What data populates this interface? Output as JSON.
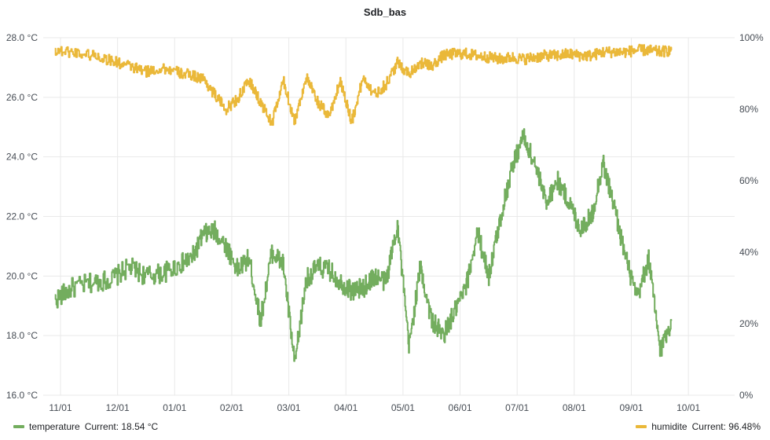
{
  "panel": {
    "title": "Sdb_bas"
  },
  "chart_data": {
    "type": "line",
    "title": "Sdb_bas",
    "x_ticks": [
      "11/01",
      "12/01",
      "01/01",
      "02/01",
      "03/01",
      "04/01",
      "05/01",
      "06/01",
      "07/01",
      "08/01",
      "09/01",
      "10/01"
    ],
    "y_left": {
      "ticks": [
        "16.0 °C",
        "18.0 °C",
        "20.0 °C",
        "22.0 °C",
        "24.0 °C",
        "26.0 °C",
        "28.0 °C"
      ],
      "range": [
        16,
        28
      ]
    },
    "y_right": {
      "ticks": [
        "0%",
        "20%",
        "40%",
        "60%",
        "80%",
        "100%"
      ],
      "range": [
        0,
        100
      ]
    },
    "grid": true,
    "legend_position": "bottom",
    "series": [
      {
        "name": "temperature",
        "axis": "left",
        "color": "#73ad5e",
        "current_label": "Current: 18.54 °C",
        "x": [
          -0.1,
          0.2,
          0.6,
          0.9,
          1.2,
          1.5,
          1.8,
          2.1,
          2.3,
          2.5,
          2.7,
          2.9,
          3.1,
          3.3,
          3.5,
          3.7,
          3.9,
          4.1,
          4.3,
          4.5,
          4.7,
          4.9,
          5.1,
          5.3,
          5.5,
          5.7,
          5.9,
          6.1,
          6.3,
          6.5,
          6.7,
          6.9,
          7.1,
          7.3,
          7.5,
          7.7,
          7.9,
          8.1,
          8.3,
          8.5,
          8.7,
          8.9,
          9.1,
          9.3,
          9.5,
          9.7,
          9.9,
          10.1,
          10.3,
          10.5,
          10.7
        ],
        "y": [
          19.2,
          19.6,
          19.8,
          19.9,
          20.3,
          20.0,
          20.1,
          20.4,
          20.6,
          21.4,
          21.5,
          21.0,
          20.2,
          20.6,
          18.5,
          20.8,
          20.4,
          17.0,
          19.9,
          20.3,
          20.2,
          19.8,
          19.5,
          19.6,
          20.0,
          19.8,
          21.8,
          17.6,
          20.3,
          18.5,
          18.0,
          18.8,
          19.6,
          21.5,
          20.0,
          21.9,
          23.6,
          24.7,
          23.8,
          22.5,
          23.2,
          22.5,
          21.6,
          22.0,
          23.8,
          22.3,
          20.6,
          19.2,
          20.6,
          17.5,
          18.5
        ]
      },
      {
        "name": "humidite",
        "axis": "right",
        "color": "#eab839",
        "current_label": "Current: 96.48%",
        "x": [
          -0.1,
          0.2,
          0.6,
          0.9,
          1.2,
          1.5,
          1.8,
          2.1,
          2.3,
          2.5,
          2.7,
          2.9,
          3.1,
          3.3,
          3.5,
          3.7,
          3.9,
          4.1,
          4.3,
          4.5,
          4.7,
          4.9,
          5.1,
          5.3,
          5.5,
          5.7,
          5.9,
          6.1,
          6.3,
          6.5,
          6.7,
          6.9,
          7.1,
          7.3,
          7.5,
          7.7,
          7.9,
          8.1,
          8.3,
          8.5,
          8.7,
          8.9,
          9.1,
          9.3,
          9.5,
          9.7,
          9.9,
          10.1,
          10.3,
          10.5,
          10.7
        ],
        "y": [
          96.5,
          96.0,
          95.0,
          93.5,
          92.0,
          90.5,
          91.5,
          90.0,
          89.5,
          88.5,
          84.0,
          80.0,
          83.0,
          88.0,
          82.0,
          76.0,
          88.0,
          76.5,
          89.0,
          82.0,
          78.0,
          88.0,
          76.5,
          89.0,
          84.0,
          87.0,
          93.0,
          90.0,
          93.0,
          92.0,
          95.0,
          95.5,
          95.5,
          95.0,
          94.5,
          94.0,
          94.5,
          94.0,
          94.5,
          95.0,
          95.0,
          95.5,
          95.0,
          95.0,
          96.0,
          96.0,
          96.0,
          96.5,
          96.5,
          96.0,
          96.5
        ]
      }
    ]
  }
}
